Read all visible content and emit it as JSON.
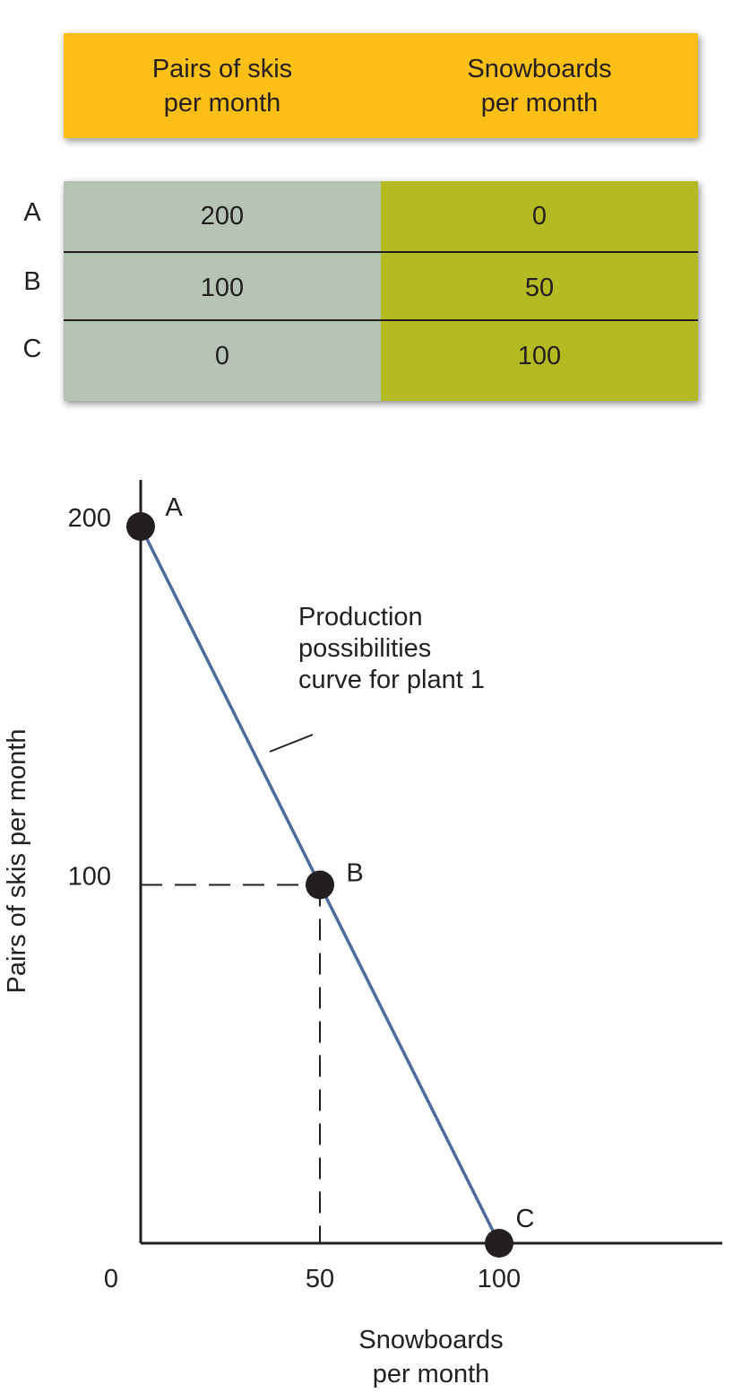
{
  "table": {
    "headers": [
      "Pairs of skis\nper month",
      "Snowboards\nper month"
    ],
    "rows": [
      {
        "label": "A",
        "skis": "200",
        "snowboards": "0"
      },
      {
        "label": "B",
        "skis": "100",
        "snowboards": "50"
      },
      {
        "label": "C",
        "skis": "0",
        "snowboards": "100"
      }
    ],
    "colors": {
      "header": "#fbbf16",
      "skis_column": "#b5c4b4",
      "snowboards_column": "#b3ba22"
    }
  },
  "chart_data": {
    "type": "line",
    "xlabel": "Snowboards\nper month",
    "ylabel": "Pairs of skis per month",
    "xlim": [
      0,
      100
    ],
    "ylim": [
      0,
      200
    ],
    "x_ticks": [
      0,
      50,
      100
    ],
    "y_ticks": [
      100,
      200
    ],
    "x_tick_labels": [
      "0",
      "50",
      "100"
    ],
    "y_tick_labels": [
      "100",
      "200"
    ],
    "series": [
      {
        "color": "#4a6b9c",
        "points": [
          {
            "x": 0,
            "y": 200
          },
          {
            "x": 50,
            "y": 100
          },
          {
            "x": 100,
            "y": 0
          }
        ]
      }
    ],
    "points": [
      {
        "label": "A",
        "x": 0,
        "y": 200
      },
      {
        "label": "B",
        "x": 50,
        "y": 100
      },
      {
        "label": "C",
        "x": 100,
        "y": 0
      }
    ],
    "guides": [
      {
        "x": 50,
        "y": 100,
        "style": "dashed"
      }
    ],
    "annotation": "Production\npossibilities\ncurve for plant 1",
    "grid": false
  }
}
